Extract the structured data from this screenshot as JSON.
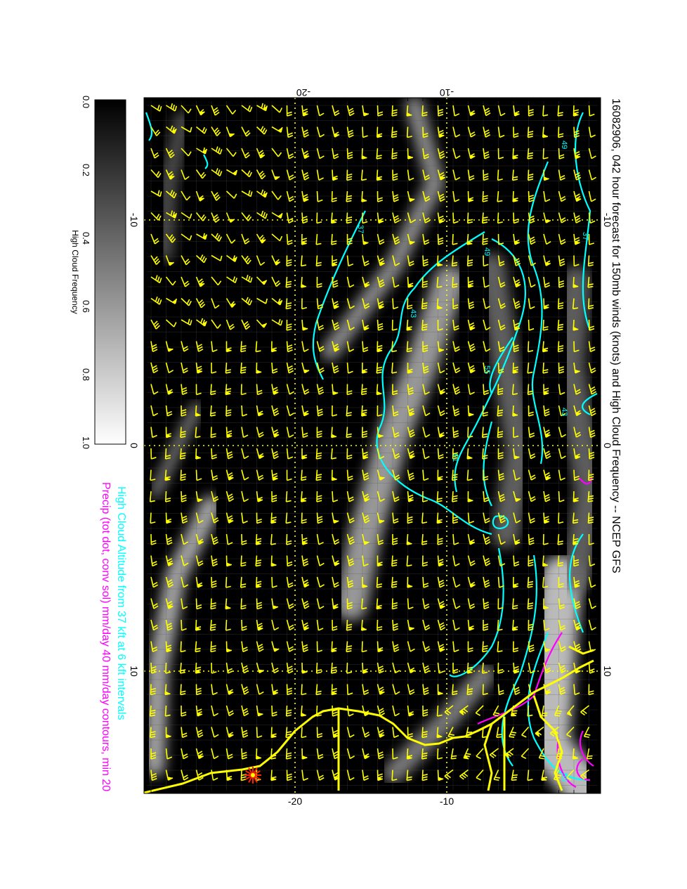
{
  "title": "16082906, 042 hour forecast for 150mb winds (knots) and High Cloud Frequency -- NCEP GFS",
  "caption_line1": "High Cloud Altitude from 37 kft at 6 kft intervals",
  "caption_line2": "Precip (tot dot, conv sol) mm/day 40 mm/day contours, min 20",
  "colorbar": {
    "label": "High Cloud Frequency",
    "tick_labels": [
      "0.0",
      "0.2",
      "0.4",
      "0.6",
      "0.8",
      "1.0"
    ]
  },
  "axes": {
    "top_ticks": [
      "-20",
      "-10"
    ],
    "bottom_ticks": [
      "-20",
      "-10"
    ],
    "left_ticks": [
      "-10",
      "0",
      "10"
    ],
    "right_ticks": [
      "-10",
      "0",
      "10"
    ]
  },
  "contour_labels": [
    "37",
    "49",
    "43",
    "55",
    "61",
    "43",
    "55",
    "37",
    "49"
  ],
  "colors": {
    "background_field": "#000000",
    "wind_barbs": "#ffff00",
    "altitude_contours": "#00ffff",
    "precip_contours": "#ff00ff",
    "coastline": "#ffff00",
    "marker": "#ff2200"
  }
}
